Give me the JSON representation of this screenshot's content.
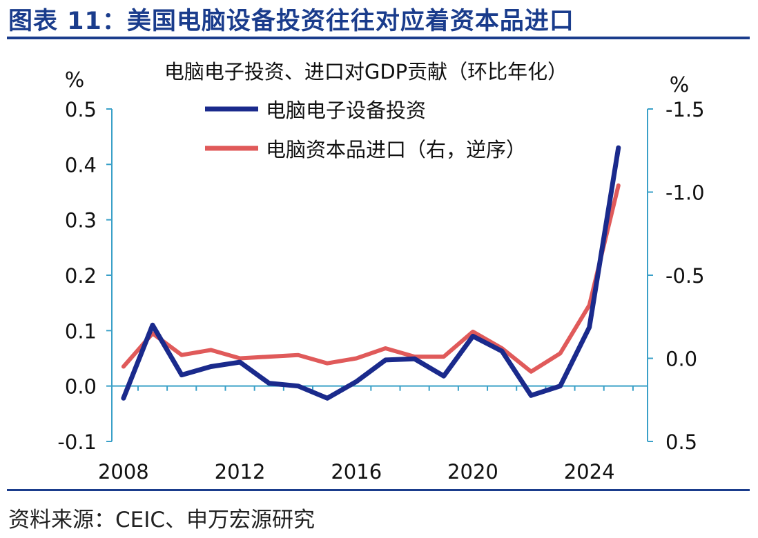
{
  "figure": {
    "title": "图表 11：美国电脑设备投资往往对应着资本品进口",
    "source": "资料来源：CEIC、申万宏源研究"
  },
  "chart_data": {
    "type": "line",
    "title": "电脑电子投资、进口对GDP贡献（环比年化）",
    "left_axis": {
      "unit": "%",
      "range": [
        -0.1,
        0.5
      ],
      "ticks": [
        "-0.1",
        "0.0",
        "0.1",
        "0.2",
        "0.3",
        "0.4",
        "0.5"
      ]
    },
    "right_axis": {
      "unit": "%",
      "range": [
        0.5,
        -1.5
      ],
      "inverted": true,
      "ticks": [
        "0.5",
        "0.0",
        "-0.5",
        "-1.0",
        "-1.5"
      ]
    },
    "x_ticks": [
      "2008",
      "2012",
      "2016",
      "2020",
      "2024"
    ],
    "x": [
      2008,
      2009,
      2010,
      2011,
      2012,
      2013,
      2014,
      2015,
      2016,
      2017,
      2018,
      2019,
      2020,
      2021,
      2022,
      2023,
      2024,
      2025
    ],
    "series": [
      {
        "name": "电脑电子设备投资",
        "axis": "left",
        "color": "#1a2a8c",
        "values": [
          -0.022,
          0.11,
          0.02,
          0.035,
          0.043,
          0.005,
          0.0,
          -0.022,
          0.008,
          0.047,
          0.049,
          0.018,
          0.09,
          0.063,
          -0.017,
          0.0,
          0.106,
          0.43
        ]
      },
      {
        "name": "电脑资本品进口（右，逆序）",
        "axis": "right",
        "color": "#e05a5a",
        "values": [
          0.05,
          -0.15,
          -0.02,
          -0.05,
          0.0,
          -0.01,
          -0.02,
          0.03,
          0.0,
          -0.06,
          -0.01,
          -0.01,
          -0.16,
          -0.06,
          0.08,
          -0.03,
          -0.32,
          -1.04
        ]
      }
    ],
    "legend_position": "top-center",
    "grid": false
  }
}
